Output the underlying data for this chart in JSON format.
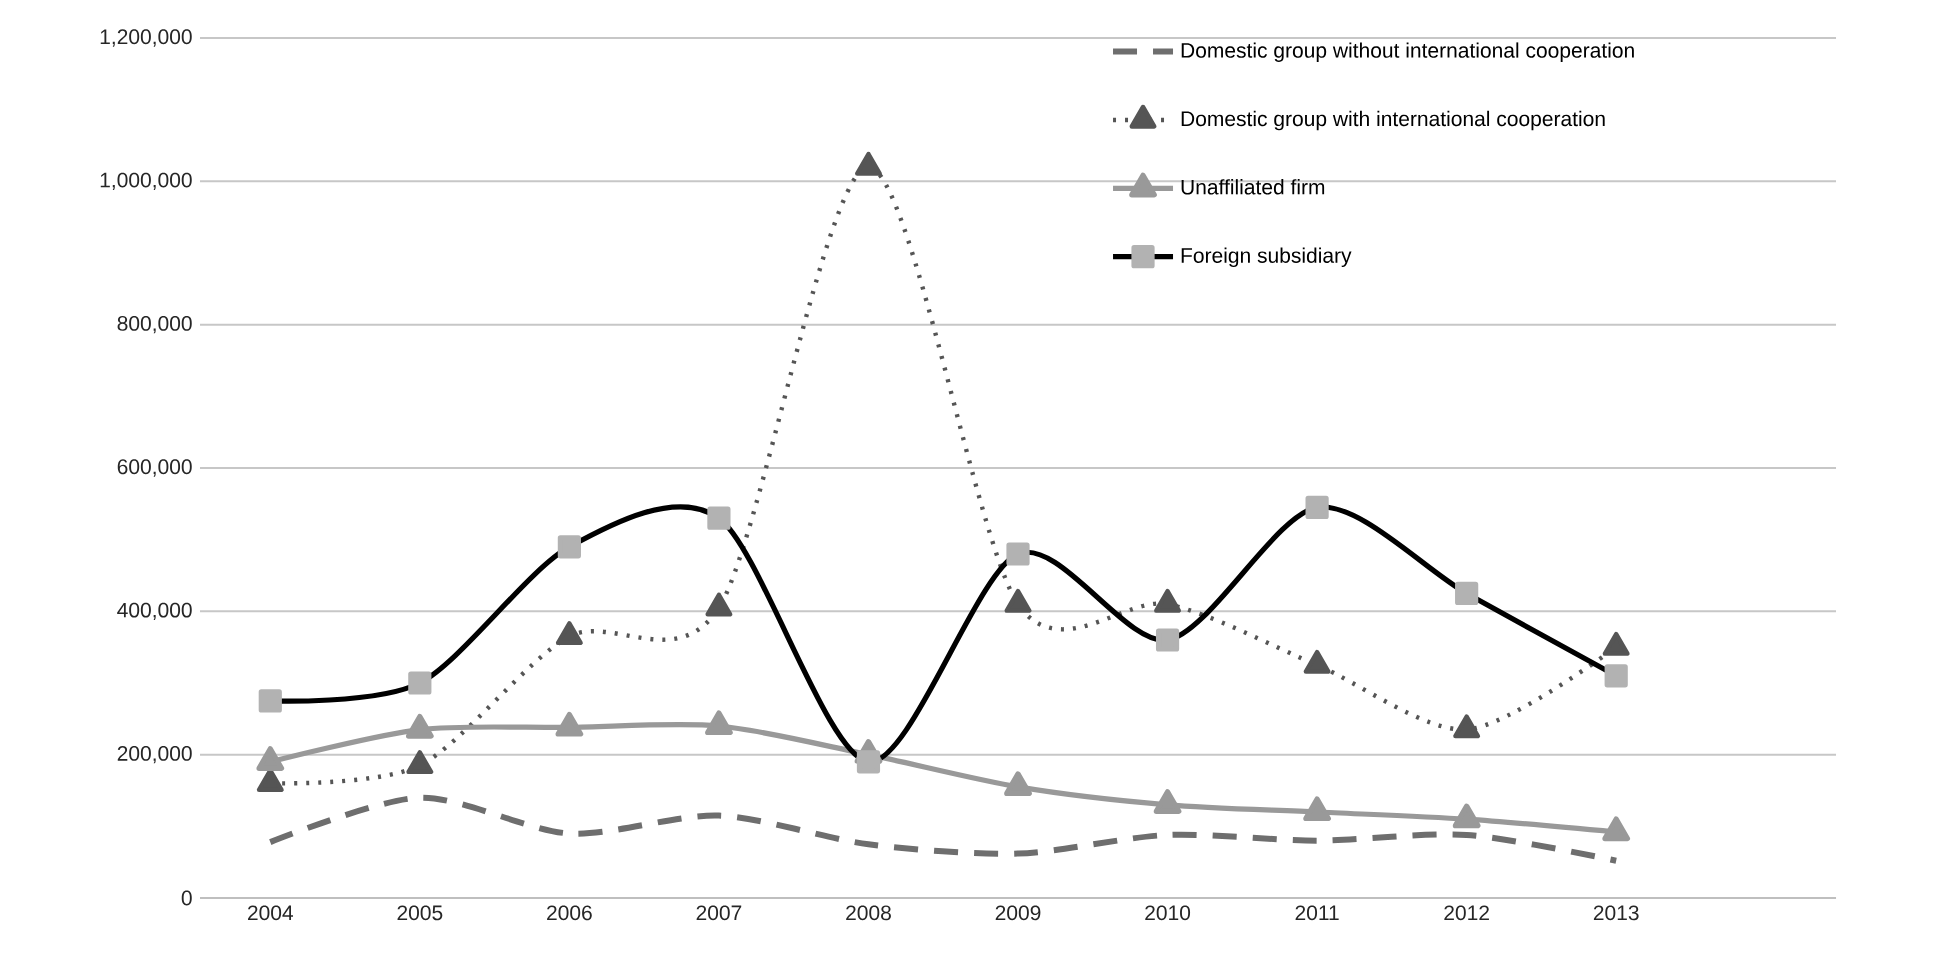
{
  "chart_data": {
    "type": "line",
    "categories": [
      "2004",
      "2005",
      "2006",
      "2007",
      "2008",
      "2009",
      "2010",
      "2011",
      "2012",
      "2013"
    ],
    "series": [
      {
        "name": "Domestic group without international cooperation",
        "color": "#6e6e6e",
        "line_style": "dashed",
        "marker": "none",
        "values": [
          78000,
          140000,
          90000,
          115000,
          75000,
          62000,
          88000,
          80000,
          88000,
          52000
        ]
      },
      {
        "name": "Domestic group with international cooperation",
        "color": "#555555",
        "line_style": "dotted",
        "marker": "triangle",
        "values": [
          160000,
          185000,
          365000,
          405000,
          1020000,
          410000,
          410000,
          325000,
          235000,
          350000
        ]
      },
      {
        "name": "Unaffiliated firm",
        "color": "#999999",
        "line_style": "solid",
        "marker": "triangle",
        "values": [
          190000,
          235000,
          238000,
          240000,
          200000,
          155000,
          130000,
          120000,
          110000,
          92000
        ]
      },
      {
        "name": "Foreign subsidiary",
        "color": "#000000",
        "line_style": "solid",
        "marker": "square",
        "values": [
          275000,
          300000,
          490000,
          530000,
          190000,
          480000,
          360000,
          545000,
          425000,
          310000
        ]
      }
    ],
    "ylim": [
      0,
      1200000
    ],
    "yticks": [
      0,
      {
        "value": 200000,
        "label": "200,000"
      },
      {
        "value": 400000,
        "label": "400,000"
      },
      {
        "value": 600000,
        "label": "600,000"
      },
      {
        "value": 800000,
        "label": "800,000"
      },
      {
        "value": 1000000,
        "label": "1,000,000"
      },
      {
        "value": 1200000,
        "label": "1,200,000"
      }
    ],
    "grid": "y",
    "legend": "top right"
  }
}
